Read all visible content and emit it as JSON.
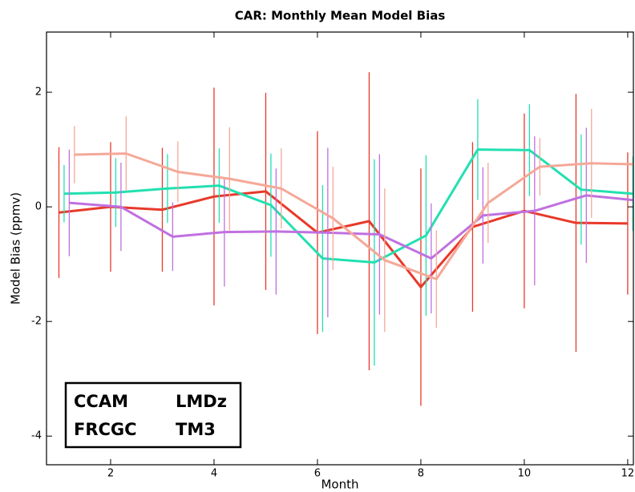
{
  "chart_data": {
    "type": "line",
    "title": "CAR: Monthly Mean Model Bias",
    "x_label": "Month",
    "y_label": "Model Bias (ppmv)",
    "xlim": [
      0.76,
      12.11
    ],
    "ylim": [
      -4.5,
      3.05
    ],
    "xticks": [
      2,
      4,
      6,
      8,
      10,
      12
    ],
    "yticks": [
      -4,
      -2,
      0,
      2
    ],
    "legend": "lower left",
    "series": [
      {
        "name": "CCAM",
        "color": "#e8392a",
        "x": [
          1,
          2,
          3,
          4,
          5,
          6,
          7,
          8,
          9,
          10,
          11,
          12
        ],
        "values": [
          -0.1,
          0.0,
          -0.05,
          0.18,
          0.27,
          -0.45,
          -0.25,
          -1.4,
          -0.35,
          -0.07,
          -0.28,
          -0.29
        ],
        "errors": [
          1.14,
          1.13,
          1.08,
          1.9,
          1.72,
          1.77,
          2.6,
          2.07,
          1.48,
          1.7,
          2.25,
          1.24
        ]
      },
      {
        "name": "LMDz",
        "color": "#22e0b0",
        "x": [
          1.1,
          2.1,
          3.1,
          4.1,
          5.1,
          6.1,
          7.1,
          8.1,
          9.1,
          10.1,
          11.1,
          12.1
        ],
        "values": [
          0.23,
          0.25,
          0.32,
          0.37,
          0.03,
          -0.9,
          -0.97,
          -0.5,
          1.0,
          0.99,
          0.3,
          0.23
        ],
        "errors": [
          0.5,
          0.6,
          0.6,
          0.65,
          0.9,
          1.28,
          1.8,
          1.4,
          0.88,
          0.8,
          0.96,
          0.65
        ]
      },
      {
        "name": "FRCGC",
        "color": "#c070e0",
        "x": [
          1.2,
          2.2,
          3.2,
          4.2,
          5.2,
          6.2,
          7.2,
          8.2,
          9.2,
          10.2,
          11.2,
          12.2
        ],
        "values": [
          0.07,
          0.0,
          -0.52,
          -0.44,
          -0.43,
          -0.45,
          -0.48,
          -0.9,
          -0.15,
          -0.07,
          0.2,
          0.11
        ],
        "errors": [
          0.93,
          0.77,
          0.6,
          0.95,
          1.1,
          1.48,
          1.4,
          0.96,
          0.84,
          1.3,
          1.18,
          0.9
        ]
      },
      {
        "name": "TM3",
        "color": "#f5a898",
        "x": [
          1.3,
          2.3,
          3.3,
          4.3,
          5.3,
          6.3,
          7.3,
          8.3,
          9.3,
          10.3,
          11.3,
          12.3
        ],
        "values": [
          0.91,
          0.93,
          0.61,
          0.49,
          0.32,
          -0.2,
          -0.93,
          -1.26,
          0.07,
          0.7,
          0.76,
          0.74
        ],
        "errors": [
          0.5,
          0.65,
          0.53,
          0.9,
          0.7,
          0.9,
          1.25,
          0.85,
          0.7,
          0.5,
          0.95,
          0.5
        ]
      }
    ]
  }
}
